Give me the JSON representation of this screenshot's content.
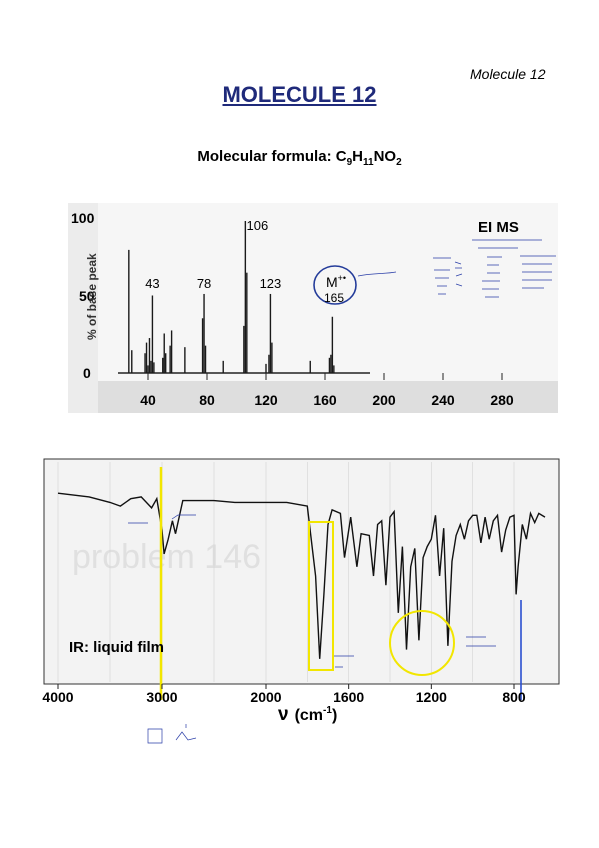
{
  "header": {
    "label": "Molecule 12"
  },
  "title": "MOLECULE 12",
  "formula": {
    "prefix": "Molecular formula: ",
    "c": "C",
    "c_n": "9",
    "h": "H",
    "h_n": "11",
    "rest": "NO",
    "o_n": "2"
  },
  "ms": {
    "label": "EI MS",
    "ylabel": "% of base peak",
    "ytick_labels": [
      "100",
      "50",
      "0"
    ],
    "xtick_labels": [
      "40",
      "80",
      "120",
      "160",
      "200",
      "240",
      "280"
    ],
    "molecular_ion": {
      "line1": "M",
      "charge": "+•",
      "line2": "165"
    }
  },
  "ir": {
    "label": "IR: liquid film",
    "xtick_labels": [
      "4000",
      "3000",
      "2000",
      "1600",
      "1200",
      "800"
    ],
    "xlabel_symbol": "ν",
    "xlabel_unit": "(cm",
    "xlabel_exp": "-1",
    "xlabel_close": ")",
    "watermark": "problem 146"
  },
  "chart_data": [
    {
      "type": "bar",
      "title": "EI MS",
      "ylabel": "% of base peak",
      "xlim": [
        10,
        300
      ],
      "ylim": [
        0,
        100
      ],
      "labeled_peaks": [
        43,
        78,
        106,
        123,
        165
      ],
      "x": [
        27,
        29,
        38,
        39,
        40,
        41,
        42,
        43,
        44,
        50,
        51,
        52,
        55,
        56,
        65,
        77,
        78,
        79,
        91,
        105,
        106,
        107,
        120,
        122,
        123,
        124,
        150,
        163,
        164,
        165,
        166
      ],
      "values": [
        81,
        15,
        13,
        20,
        5,
        23,
        8,
        51,
        7,
        10,
        26,
        13,
        18,
        28,
        17,
        36,
        52,
        18,
        8,
        31,
        100,
        66,
        6,
        12,
        52,
        20,
        8,
        10,
        12,
        37,
        5
      ]
    },
    {
      "type": "line",
      "title": "IR: liquid film",
      "xlabel": "ν (cm-1)",
      "xlim": [
        4000,
        650
      ],
      "ylim": [
        0,
        100
      ],
      "x": [
        4000,
        3700,
        3500,
        3400,
        3300,
        3200,
        3100,
        3050,
        3000,
        2980,
        2940,
        2900,
        2870,
        2800,
        2500,
        2300,
        2000,
        1900,
        1800,
        1760,
        1740,
        1720,
        1700,
        1680,
        1640,
        1620,
        1590,
        1560,
        1540,
        1500,
        1480,
        1460,
        1440,
        1420,
        1400,
        1380,
        1360,
        1340,
        1320,
        1300,
        1280,
        1260,
        1240,
        1220,
        1200,
        1180,
        1160,
        1140,
        1120,
        1100,
        1080,
        1060,
        1040,
        1020,
        1000,
        980,
        960,
        940,
        920,
        900,
        880,
        860,
        840,
        820,
        800,
        790,
        780,
        760,
        740,
        720,
        700,
        680,
        650
      ],
      "y": [
        95,
        93,
        90,
        88,
        92,
        93,
        87,
        92,
        75,
        62,
        70,
        80,
        73,
        91,
        91,
        90,
        90,
        90,
        88,
        50,
        5,
        40,
        78,
        86,
        84,
        60,
        82,
        55,
        73,
        72,
        50,
        78,
        80,
        45,
        82,
        85,
        30,
        66,
        10,
        55,
        65,
        15,
        60,
        66,
        70,
        83,
        50,
        76,
        12,
        58,
        72,
        78,
        70,
        80,
        83,
        83,
        68,
        82,
        70,
        80,
        83,
        63,
        75,
        82,
        83,
        40,
        55,
        78,
        70,
        84,
        79,
        84,
        82
      ]
    }
  ]
}
